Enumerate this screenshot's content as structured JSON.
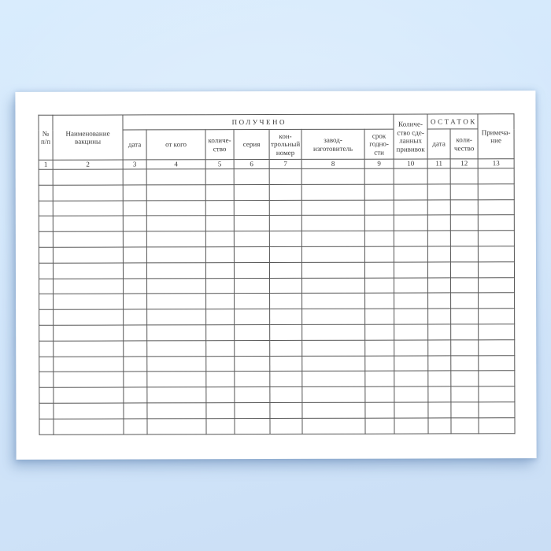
{
  "scene": {
    "background_top_color": "#d9ecfd",
    "background_bottom_color": "#cadef5",
    "paper_color": "#ffffff",
    "table_border_color": "#575757",
    "text_color": "#3a3a3a"
  },
  "table": {
    "group_received": "ПОЛУЧЕНО",
    "group_remainder": "ОСТАТОК",
    "headers": {
      "no": "№\nп/п",
      "vaccine_name": "Наименование\nвакцины",
      "date_received": "дата",
      "from_whom": "от кого",
      "quantity": "количе-\nство",
      "series": "серия",
      "control_number": "кон-\nтрольный\nномер",
      "manufacturer": "завод-\nизготовитель",
      "expiry": "срок\nгодно-\nсти",
      "vaccinations_done": "Количе-\nство сде-\nланных\nпрививок",
      "remainder_date": "дата",
      "remainder_quantity": "коли-\nчество",
      "note": "Примеча-\nние"
    },
    "column_numbers": [
      "1",
      "2",
      "3",
      "4",
      "5",
      "6",
      "7",
      "8",
      "9",
      "10",
      "11",
      "12",
      "13"
    ],
    "column_count": 13,
    "body_row_count": 17
  }
}
